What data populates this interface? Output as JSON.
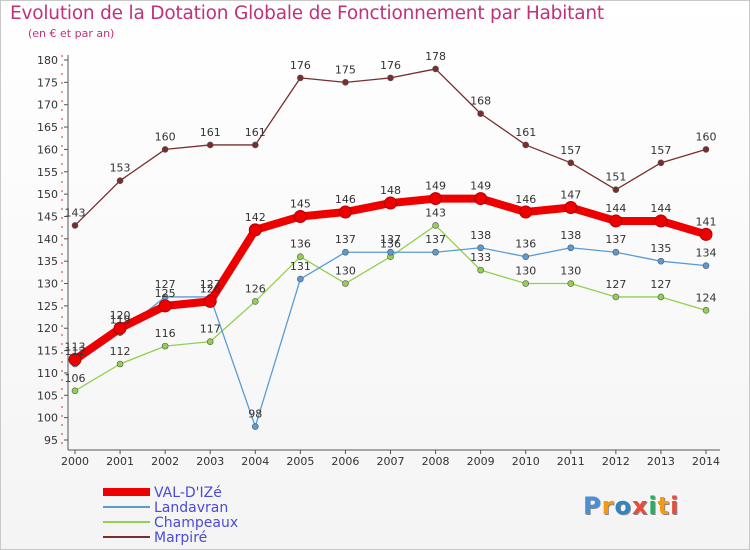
{
  "header": {
    "title": "Evolution de la Dotation Globale de Fonctionnement par Habitant",
    "subtitle": "(en € et par an)"
  },
  "logo": {
    "text": "Proxiti"
  },
  "colors": {
    "title": "#c0317a",
    "axis": "#555555",
    "grid_dash": "#cc3333",
    "legend_text": "#4b4bd8"
  },
  "chart_data": {
    "type": "line",
    "title": "Evolution de la Dotation Globale de Fonctionnement par Habitant",
    "subtitle": "(en € et par an)",
    "xlabel": "",
    "ylabel": "",
    "x": [
      "2000",
      "2001",
      "2002",
      "2003",
      "2004",
      "2005",
      "2006",
      "2007",
      "2008",
      "2009",
      "2010",
      "2011",
      "2012",
      "2013",
      "2014"
    ],
    "ylim": [
      95,
      180
    ],
    "yticks": [
      95,
      100,
      105,
      110,
      115,
      120,
      125,
      130,
      135,
      140,
      145,
      150,
      155,
      160,
      165,
      170,
      175,
      180
    ],
    "legend_position": "bottom-left",
    "series": [
      {
        "name": "VAL-D'IZé",
        "color": "#ee0000",
        "values": [
          113,
          120,
          125,
          126,
          142,
          145,
          146,
          148,
          149,
          149,
          146,
          147,
          144,
          144,
          141
        ]
      },
      {
        "name": "Landavran",
        "color": "#5b9bd5",
        "values": [
          112,
          119,
          127,
          127,
          98,
          131,
          137,
          137,
          137,
          138,
          136,
          138,
          137,
          135,
          134
        ]
      },
      {
        "name": "Champeaux",
        "color": "#92d050",
        "values": [
          106,
          112,
          116,
          117,
          126,
          136,
          130,
          136,
          143,
          133,
          130,
          130,
          127,
          127,
          124
        ]
      },
      {
        "name": "Marpiré",
        "color": "#7b2c2c",
        "values": [
          143,
          153,
          160,
          161,
          161,
          176,
          175,
          176,
          178,
          168,
          161,
          157,
          151,
          157,
          160
        ]
      }
    ]
  }
}
